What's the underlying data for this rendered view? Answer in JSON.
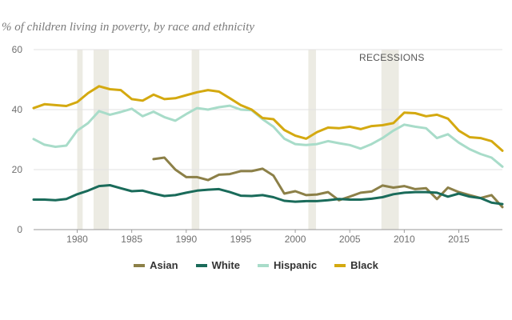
{
  "chart_data": {
    "type": "line",
    "title": "% of children living in poverty, by race and ethnicity",
    "annotation": "RECESSIONS",
    "xlim": [
      1976,
      2019
    ],
    "ylim": [
      0,
      60
    ],
    "yticks": [
      0,
      20,
      40,
      60
    ],
    "xticks": [
      1980,
      1985,
      1990,
      1995,
      2000,
      2005,
      2010,
      2015
    ],
    "grid": true,
    "legend_position": "bottom",
    "recessions": [
      [
        1980.0,
        1980.5
      ],
      [
        1981.5,
        1982.9
      ],
      [
        1990.5,
        1991.2
      ],
      [
        2001.2,
        2001.9
      ],
      [
        2007.9,
        2009.5
      ]
    ],
    "series": [
      {
        "name": "Asian",
        "color": "#8c8048",
        "x": [
          1987,
          1988,
          1989,
          1990,
          1991,
          1992,
          1993,
          1994,
          1995,
          1996,
          1997,
          1998,
          1999,
          2000,
          2001,
          2002,
          2003,
          2004,
          2005,
          2006,
          2007,
          2008,
          2009,
          2010,
          2011,
          2012,
          2013,
          2014,
          2015,
          2016,
          2017,
          2018,
          2019
        ],
        "values": [
          23.5,
          24.0,
          20.0,
          17.5,
          17.5,
          16.5,
          18.3,
          18.5,
          19.5,
          19.5,
          20.3,
          18.0,
          12.0,
          12.8,
          11.5,
          11.7,
          12.5,
          9.8,
          11.0,
          12.3,
          12.7,
          14.7,
          14.0,
          14.5,
          13.5,
          13.8,
          10.2,
          14.0,
          12.5,
          11.5,
          10.5,
          11.5,
          7.5
        ]
      },
      {
        "name": "White",
        "color": "#1a6b5a",
        "x": [
          1976,
          1977,
          1978,
          1979,
          1980,
          1981,
          1982,
          1983,
          1984,
          1985,
          1986,
          1987,
          1988,
          1989,
          1990,
          1991,
          1992,
          1993,
          1994,
          1995,
          1996,
          1997,
          1998,
          1999,
          2000,
          2001,
          2002,
          2003,
          2004,
          2005,
          2006,
          2007,
          2008,
          2009,
          2010,
          2011,
          2012,
          2013,
          2014,
          2015,
          2016,
          2017,
          2018,
          2019
        ],
        "values": [
          10.0,
          10.0,
          9.8,
          10.2,
          11.8,
          13.0,
          14.5,
          14.8,
          13.8,
          12.8,
          13.0,
          12.0,
          11.2,
          11.5,
          12.3,
          13.0,
          13.3,
          13.5,
          12.5,
          11.3,
          11.2,
          11.5,
          10.8,
          9.6,
          9.3,
          9.5,
          9.5,
          9.8,
          10.2,
          10.0,
          10.0,
          10.3,
          10.8,
          11.8,
          12.3,
          12.5,
          12.5,
          12.3,
          11.0,
          12.0,
          11.0,
          10.5,
          9.0,
          8.5
        ]
      },
      {
        "name": "Hispanic",
        "color": "#a8dcc9",
        "x": [
          1976,
          1977,
          1978,
          1979,
          1980,
          1981,
          1982,
          1983,
          1984,
          1985,
          1986,
          1987,
          1988,
          1989,
          1990,
          1991,
          1992,
          1993,
          1994,
          1995,
          1996,
          1997,
          1998,
          1999,
          2000,
          2001,
          2002,
          2003,
          2004,
          2005,
          2006,
          2007,
          2008,
          2009,
          2010,
          2011,
          2012,
          2013,
          2014,
          2015,
          2016,
          2017,
          2018,
          2019
        ],
        "values": [
          30.2,
          28.3,
          27.6,
          28.0,
          33.0,
          35.5,
          39.5,
          38.3,
          39.2,
          40.3,
          37.8,
          39.3,
          37.5,
          36.3,
          38.5,
          40.5,
          40.0,
          40.8,
          41.3,
          40.0,
          39.8,
          36.8,
          34.3,
          30.3,
          28.5,
          28.2,
          28.5,
          29.5,
          28.8,
          28.2,
          27.0,
          28.5,
          30.5,
          33.0,
          35.0,
          34.3,
          33.8,
          30.5,
          31.8,
          29.0,
          26.8,
          25.2,
          24.0,
          21.0
        ]
      },
      {
        "name": "Black",
        "color": "#d4a910",
        "x": [
          1976,
          1977,
          1978,
          1979,
          1980,
          1981,
          1982,
          1983,
          1984,
          1985,
          1986,
          1987,
          1988,
          1989,
          1990,
          1991,
          1992,
          1993,
          1994,
          1995,
          1996,
          1997,
          1998,
          1999,
          2000,
          2001,
          2002,
          2003,
          2004,
          2005,
          2006,
          2007,
          2008,
          2009,
          2010,
          2011,
          2012,
          2013,
          2014,
          2015,
          2016,
          2017,
          2018,
          2019
        ],
        "values": [
          40.5,
          41.8,
          41.5,
          41.2,
          42.5,
          45.5,
          47.8,
          46.8,
          46.5,
          43.5,
          43.0,
          45.0,
          43.5,
          43.8,
          44.8,
          45.8,
          46.5,
          46.0,
          43.8,
          41.5,
          40.0,
          37.2,
          36.8,
          33.2,
          31.3,
          30.3,
          32.5,
          34.0,
          33.8,
          34.3,
          33.5,
          34.5,
          34.8,
          35.5,
          39.0,
          38.8,
          37.8,
          38.3,
          37.0,
          33.0,
          30.8,
          30.5,
          29.5,
          26.3
        ]
      }
    ]
  }
}
